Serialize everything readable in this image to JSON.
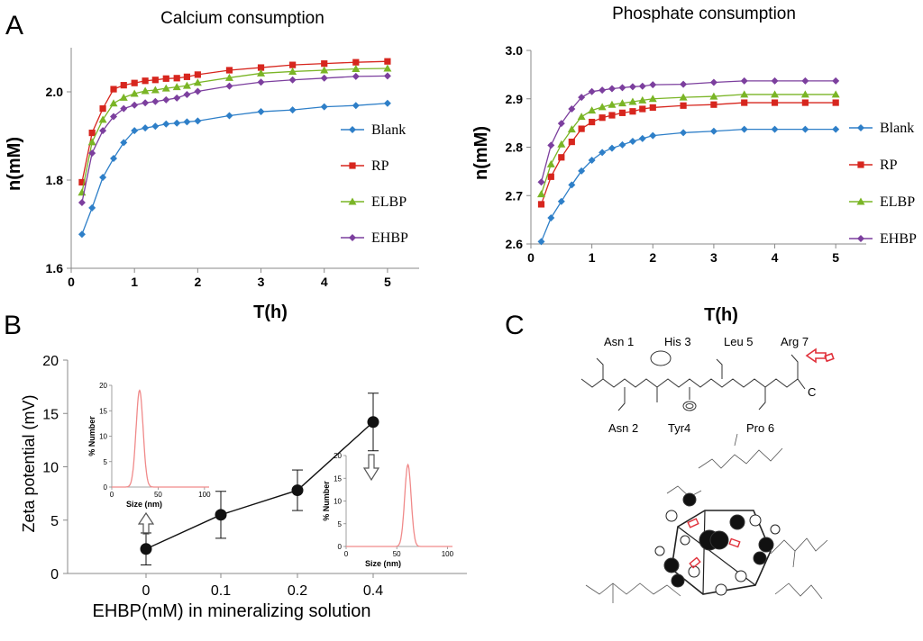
{
  "panels": {
    "a": "A",
    "b": "B",
    "c": "C"
  },
  "colors": {
    "Blank": "#2e7fc8",
    "RP": "#d7261e",
    "ELBP": "#7ab526",
    "EHBP": "#7c3f9e",
    "pink": "#f08a8a",
    "point": "#111111"
  },
  "chart_data": [
    {
      "id": "calcium",
      "type": "line",
      "title": "Calcium consumption",
      "xlabel": "T(h)",
      "ylabel": "n(mM)",
      "xlim": [
        0,
        5.5
      ],
      "ylim": [
        1.6,
        2.1
      ],
      "xticks": [
        0,
        1,
        2,
        3,
        4,
        5
      ],
      "yticks": [
        1.6,
        1.8,
        2.0
      ],
      "legend_position": "right",
      "series": [
        {
          "name": "Blank",
          "x": [
            0.17,
            0.33,
            0.5,
            0.67,
            0.83,
            1.0,
            1.17,
            1.33,
            1.5,
            1.67,
            1.83,
            2.0,
            2.5,
            3.0,
            3.5,
            4.0,
            4.5,
            5.0
          ],
          "values": [
            1.677,
            1.737,
            1.806,
            1.849,
            1.885,
            1.912,
            1.918,
            1.922,
            1.927,
            1.929,
            1.932,
            1.934,
            1.946,
            1.955,
            1.959,
            1.966,
            1.969,
            1.974
          ]
        },
        {
          "name": "RP",
          "x": [
            0.17,
            0.33,
            0.5,
            0.67,
            0.83,
            1.0,
            1.17,
            1.33,
            1.5,
            1.67,
            1.83,
            2.0,
            2.5,
            3.0,
            3.5,
            4.0,
            4.5,
            5.0
          ],
          "values": [
            1.795,
            1.907,
            1.962,
            2.006,
            2.015,
            2.02,
            2.025,
            2.027,
            2.03,
            2.031,
            2.034,
            2.039,
            2.049,
            2.055,
            2.061,
            2.064,
            2.067,
            2.069
          ]
        },
        {
          "name": "ELBP",
          "x": [
            0.17,
            0.33,
            0.5,
            0.67,
            0.83,
            1.0,
            1.17,
            1.33,
            1.5,
            1.67,
            1.83,
            2.0,
            2.5,
            3.0,
            3.5,
            4.0,
            4.5,
            5.0
          ],
          "values": [
            1.772,
            1.886,
            1.937,
            1.974,
            1.987,
            1.996,
            2.002,
            2.004,
            2.008,
            2.011,
            2.014,
            2.021,
            2.032,
            2.042,
            2.046,
            2.049,
            2.052,
            2.053
          ]
        },
        {
          "name": "EHBP",
          "x": [
            0.17,
            0.33,
            0.5,
            0.67,
            0.83,
            1.0,
            1.17,
            1.33,
            1.5,
            1.67,
            1.83,
            2.0,
            2.5,
            3.0,
            3.5,
            4.0,
            4.5,
            5.0
          ],
          "values": [
            1.749,
            1.861,
            1.912,
            1.944,
            1.962,
            1.97,
            1.975,
            1.978,
            1.982,
            1.986,
            1.994,
            2.001,
            2.013,
            2.022,
            2.027,
            2.031,
            2.035,
            2.036
          ]
        }
      ]
    },
    {
      "id": "phosphate",
      "type": "line",
      "title": "Phosphate consumption",
      "xlabel": "T(h)",
      "ylabel": "n(mM)",
      "xlim": [
        0,
        5.5
      ],
      "ylim": [
        2.6,
        3.0
      ],
      "xticks": [
        0,
        1,
        2,
        3,
        4,
        5
      ],
      "yticks": [
        2.6,
        2.7,
        2.8,
        2.9,
        3.0
      ],
      "legend_position": "right",
      "series": [
        {
          "name": "Blank",
          "x": [
            0.17,
            0.33,
            0.5,
            0.67,
            0.83,
            1.0,
            1.17,
            1.33,
            1.5,
            1.67,
            1.83,
            2.0,
            2.5,
            3.0,
            3.5,
            4.0,
            4.5,
            5.0
          ],
          "values": [
            2.605,
            2.654,
            2.688,
            2.722,
            2.751,
            2.773,
            2.789,
            2.798,
            2.805,
            2.812,
            2.818,
            2.824,
            2.83,
            2.833,
            2.837,
            2.837,
            2.837,
            2.837
          ]
        },
        {
          "name": "RP",
          "x": [
            0.17,
            0.33,
            0.5,
            0.67,
            0.83,
            1.0,
            1.17,
            1.33,
            1.5,
            1.67,
            1.83,
            2.0,
            2.5,
            3.0,
            3.5,
            4.0,
            4.5,
            5.0
          ],
          "values": [
            2.682,
            2.739,
            2.779,
            2.811,
            2.838,
            2.852,
            2.861,
            2.866,
            2.871,
            2.874,
            2.879,
            2.882,
            2.886,
            2.888,
            2.892,
            2.892,
            2.892,
            2.892
          ]
        },
        {
          "name": "ELBP",
          "x": [
            0.17,
            0.33,
            0.5,
            0.67,
            0.83,
            1.0,
            1.17,
            1.33,
            1.5,
            1.67,
            1.83,
            2.0,
            2.5,
            3.0,
            3.5,
            4.0,
            4.5,
            5.0
          ],
          "values": [
            2.703,
            2.765,
            2.806,
            2.837,
            2.863,
            2.876,
            2.883,
            2.888,
            2.891,
            2.894,
            2.897,
            2.9,
            2.903,
            2.905,
            2.909,
            2.909,
            2.909,
            2.909
          ]
        },
        {
          "name": "EHBP",
          "x": [
            0.17,
            0.33,
            0.5,
            0.67,
            0.83,
            1.0,
            1.17,
            1.33,
            1.5,
            1.67,
            1.83,
            2.0,
            2.5,
            3.0,
            3.5,
            4.0,
            4.5,
            5.0
          ],
          "values": [
            2.728,
            2.804,
            2.849,
            2.879,
            2.903,
            2.915,
            2.918,
            2.921,
            2.923,
            2.925,
            2.926,
            2.929,
            2.93,
            2.934,
            2.937,
            2.937,
            2.937,
            2.937
          ]
        }
      ]
    },
    {
      "id": "zeta",
      "type": "scatter",
      "title": "",
      "xlabel": "EHBP(mM) in mineralizing solution",
      "ylabel": "Zeta potential (mV)",
      "ylim": [
        0,
        20
      ],
      "yticks": [
        0,
        5,
        10,
        15,
        20
      ],
      "categories": [
        "0",
        "0.1",
        "0.2",
        "0.4"
      ],
      "values": [
        2.3,
        5.5,
        7.8,
        14.2
      ],
      "errors": [
        1.5,
        2.2,
        1.9,
        2.7
      ],
      "insets": [
        {
          "ylabel": "% Number",
          "xlabel": "Size (nm)",
          "xticks": [
            0,
            50,
            100
          ],
          "yticks": [
            0,
            5,
            10,
            15,
            20
          ],
          "xlim": [
            0,
            105
          ],
          "ylim": [
            0,
            20
          ],
          "peak_center": 30,
          "peak_width": 3.8,
          "peak_height": 19
        },
        {
          "ylabel": "% Number",
          "xlabel": "Size (nm)",
          "xticks": [
            0,
            50,
            100
          ],
          "yticks": [
            0,
            5,
            10,
            15,
            20
          ],
          "xlim": [
            0,
            105
          ],
          "ylim": [
            0,
            20
          ],
          "peak_center": 61,
          "peak_width": 3.2,
          "peak_height": 18
        }
      ]
    }
  ],
  "panel_c": {
    "top_labels": [
      "Asn 1",
      "His 3",
      "Leu 5",
      "Arg 7"
    ],
    "bottom_labels": [
      "Asn 2",
      "Tyr4",
      "Pro 6"
    ],
    "c_terminal": "C"
  }
}
